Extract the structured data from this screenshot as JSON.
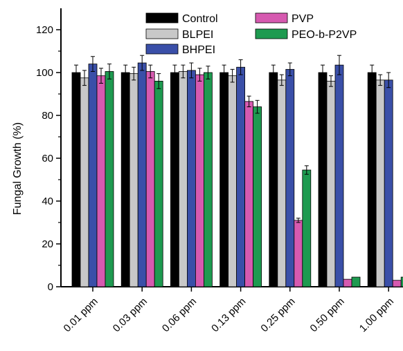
{
  "chart_data": {
    "type": "bar",
    "title": "",
    "xlabel": "",
    "ylabel": "Fungal Growth (%)",
    "ylim": [
      0,
      130
    ],
    "yticks": [
      0,
      20,
      40,
      60,
      80,
      100,
      120
    ],
    "grid": false,
    "legend_position": "top",
    "categories": [
      "0.01 ppm",
      "0.03 ppm",
      "0.06 ppm",
      "0.13 ppm",
      "0.25 ppm",
      "0.50 ppm",
      "1.00 ppm"
    ],
    "series": [
      {
        "name": "Control",
        "color": "#000000",
        "values": [
          100,
          100,
          100,
          100,
          100,
          100,
          100
        ],
        "errors": [
          3.5,
          3.5,
          3.5,
          3.5,
          3.5,
          3.5,
          3.5
        ]
      },
      {
        "name": "BLPEI",
        "color": "#c8c8c8",
        "values": [
          97.5,
          99.5,
          100.5,
          98.5,
          96.5,
          96,
          96.5
        ],
        "errors": [
          3.5,
          3,
          3,
          3,
          2.5,
          2.5,
          2.5
        ]
      },
      {
        "name": "BHPEI",
        "color": "#3a4fa8",
        "values": [
          104,
          104.5,
          101,
          102.5,
          101.5,
          103.5,
          96.5
        ],
        "errors": [
          3.5,
          3.5,
          3.5,
          3.5,
          3,
          4.5,
          3.5
        ]
      },
      {
        "name": "PVP",
        "color": "#d65ab0",
        "values": [
          98.5,
          100.5,
          99,
          86.5,
          31,
          3.5,
          3
        ],
        "errors": [
          3.5,
          3,
          3,
          2.5,
          1,
          0,
          0
        ]
      },
      {
        "name": "PEO-b-P2VP",
        "color": "#1e9a50",
        "values": [
          100.5,
          96,
          100,
          84,
          54.5,
          4.5,
          4.5
        ],
        "errors": [
          3.5,
          3.5,
          3,
          3,
          2,
          0,
          0
        ]
      }
    ]
  }
}
